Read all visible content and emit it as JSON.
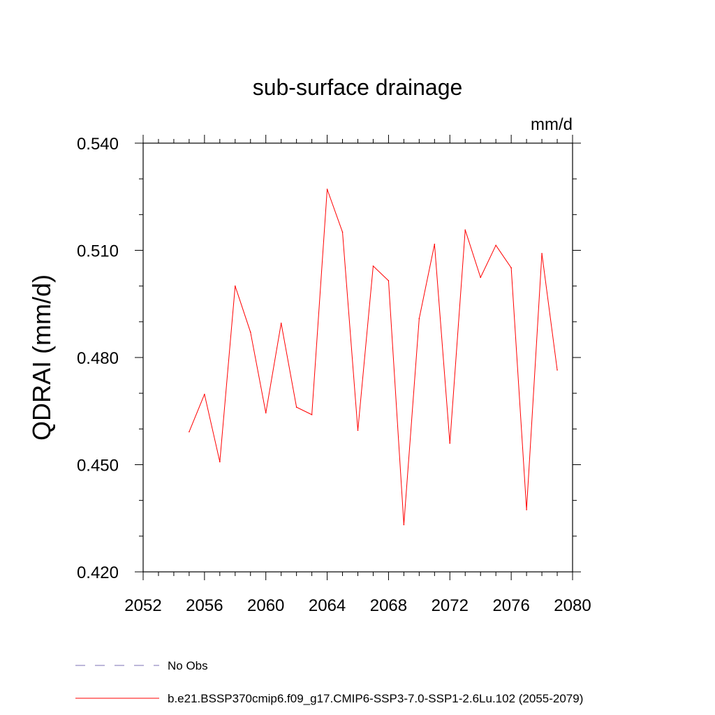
{
  "chart_data": {
    "type": "line",
    "title": "sub-surface drainage",
    "units_label": "mm/d",
    "ylabel": "QDRAI  (mm/d)",
    "xlabel": "",
    "xlim": [
      2052,
      2080
    ],
    "ylim": [
      0.42,
      0.54
    ],
    "x_ticks": [
      2052,
      2056,
      2060,
      2064,
      2068,
      2072,
      2076,
      2080
    ],
    "y_ticks": [
      0.42,
      0.45,
      0.48,
      0.51,
      0.54
    ],
    "x_tick_labels": [
      "2052",
      "2056",
      "2060",
      "2064",
      "2068",
      "2072",
      "2076",
      "2080"
    ],
    "y_tick_labels": [
      "0.420",
      "0.450",
      "0.480",
      "0.510",
      "0.540"
    ],
    "grid": false,
    "legend_position": "bottom-left",
    "legend": [
      {
        "label": "No Obs",
        "color": "#7b6fb5",
        "dash": "dashed"
      },
      {
        "label": "b.e21.BSSP370cmip6.f09_g17.CMIP6-SSP3-7.0-SSP1-2.6Lu.102 (2055-2079)",
        "color": "#ff0000",
        "dash": "solid"
      }
    ],
    "series": [
      {
        "name": "b.e21.BSSP370cmip6.f09_g17.CMIP6-SSP3-7.0-SSP1-2.6Lu.102 (2055-2079)",
        "color": "#ff0000",
        "x": [
          2055,
          2056,
          2057,
          2058,
          2059,
          2060,
          2061,
          2062,
          2063,
          2064,
          2065,
          2066,
          2067,
          2068,
          2069,
          2070,
          2071,
          2072,
          2073,
          2074,
          2075,
          2076,
          2077,
          2078,
          2079
        ],
        "values": [
          0.4592,
          0.4697,
          0.4508,
          0.5,
          0.4871,
          0.4645,
          0.4896,
          0.4661,
          0.464,
          0.5271,
          0.5151,
          0.4596,
          0.5056,
          0.5015,
          0.4332,
          0.4909,
          0.5117,
          0.456,
          0.5157,
          0.5024,
          0.5114,
          0.5051,
          0.4374,
          0.5091,
          0.4765
        ]
      }
    ]
  }
}
